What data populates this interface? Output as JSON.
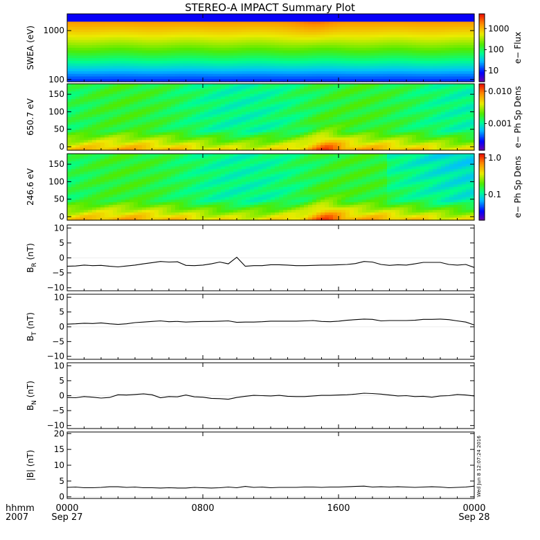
{
  "title": "STEREO-A IMPACT Summary Plot",
  "stamp": "Wed Jun  8 12:07:24 2016",
  "colors": {
    "frame": "#000000",
    "line": "#000000",
    "background": "#ffffff"
  },
  "time_axis": {
    "label_top": "hhmm",
    "label_bottom": "2007",
    "ticks": [
      {
        "t": 0,
        "top": "0000",
        "bottom": "Sep 27"
      },
      {
        "t": 8,
        "top": "0800",
        "bottom": ""
      },
      {
        "t": 16,
        "top": "1600",
        "bottom": ""
      },
      {
        "t": 24,
        "top": "0000",
        "bottom": "Sep 28"
      }
    ],
    "range_hours": [
      0,
      24
    ]
  },
  "chart_data": [
    {
      "type": "heatmap",
      "ylabel": "SWEA (eV)",
      "yscale": "log",
      "ylim": [
        90,
        2200
      ],
      "yticks": [
        {
          "v": 100,
          "label": "100"
        },
        {
          "v": 1000,
          "label": "1000"
        }
      ],
      "colorbar": {
        "label": "e− Flux",
        "scale": "log",
        "range": [
          3,
          5000
        ],
        "ticks": [
          {
            "v": 10,
            "label": "10"
          },
          {
            "v": 100,
            "label": "100"
          },
          {
            "v": 1000,
            "label": "1000"
          }
        ]
      }
    },
    {
      "type": "heatmap",
      "ylabel": "650.7 eV",
      "ylim": [
        -10,
        180
      ],
      "yticks": [
        {
          "v": 0,
          "label": "0"
        },
        {
          "v": 50,
          "label": "50"
        },
        {
          "v": 100,
          "label": "100"
        },
        {
          "v": 150,
          "label": "150"
        }
      ],
      "colorbar": {
        "label": "e− Ph Sp Dens",
        "scale": "log",
        "range": [
          0.00015,
          0.017
        ],
        "ticks": [
          {
            "v": 0.001,
            "label": "0.001"
          },
          {
            "v": 0.01,
            "label": "0.010"
          }
        ]
      }
    },
    {
      "type": "heatmap",
      "ylabel": "246.6 eV",
      "ylim": [
        -10,
        180
      ],
      "yticks": [
        {
          "v": 0,
          "label": "0"
        },
        {
          "v": 50,
          "label": "50"
        },
        {
          "v": 100,
          "label": "100"
        },
        {
          "v": 150,
          "label": "150"
        }
      ],
      "colorbar": {
        "label": "e− Ph Sp Dens",
        "scale": "log",
        "range": [
          0.02,
          1.3
        ],
        "ticks": [
          {
            "v": 0.1,
            "label": "0.1"
          },
          {
            "v": 1.0,
            "label": "1.0"
          }
        ]
      }
    },
    {
      "type": "line",
      "ylabel": "B",
      "ylabel_sub": "R",
      "ylabel_unit": "(nT)",
      "ylim": [
        -11,
        11
      ],
      "yticks": [
        {
          "v": -10,
          "label": "−10"
        },
        {
          "v": -5,
          "label": "−5"
        },
        {
          "v": 0,
          "label": "0"
        },
        {
          "v": 5,
          "label": "5"
        },
        {
          "v": 10,
          "label": "10"
        }
      ],
      "x": [
        0,
        0.5,
        1,
        1.5,
        2,
        2.5,
        3,
        3.5,
        4,
        4.5,
        5,
        5.5,
        6,
        6.5,
        7,
        7.5,
        8,
        8.5,
        9,
        9.5,
        10,
        10.5,
        11,
        11.5,
        12,
        12.5,
        13,
        13.5,
        14,
        14.5,
        15,
        15.5,
        16,
        16.5,
        17,
        17.5,
        18,
        18.5,
        19,
        19.5,
        20,
        20.5,
        21,
        21.5,
        22,
        22.5,
        23,
        23.5,
        24
      ],
      "y": [
        -2.8,
        -2.7,
        -2.4,
        -2.6,
        -2.5,
        -2.8,
        -3.0,
        -2.7,
        -2.4,
        -2.0,
        -1.6,
        -1.2,
        -1.4,
        -1.3,
        -2.5,
        -2.6,
        -2.4,
        -2.0,
        -1.4,
        -2.0,
        0.2,
        -2.8,
        -2.6,
        -2.6,
        -2.3,
        -2.3,
        -2.4,
        -2.6,
        -2.6,
        -2.5,
        -2.4,
        -2.4,
        -2.3,
        -2.2,
        -1.9,
        -1.2,
        -1.4,
        -2.2,
        -2.5,
        -2.3,
        -2.4,
        -2.0,
        -1.5,
        -1.5,
        -1.5,
        -2.2,
        -2.4,
        -2.2,
        -3.2
      ]
    },
    {
      "type": "line",
      "ylabel": "B",
      "ylabel_sub": "T",
      "ylabel_unit": "(nT)",
      "ylim": [
        -11,
        11
      ],
      "yticks": [
        {
          "v": -10,
          "label": "−10"
        },
        {
          "v": -5,
          "label": "−5"
        },
        {
          "v": 0,
          "label": "0"
        },
        {
          "v": 5,
          "label": "5"
        },
        {
          "v": 10,
          "label": "10"
        }
      ],
      "x": [
        0,
        0.5,
        1,
        1.5,
        2,
        2.5,
        3,
        3.5,
        4,
        4.5,
        5,
        5.5,
        6,
        6.5,
        7,
        7.5,
        8,
        8.5,
        9,
        9.5,
        10,
        10.5,
        11,
        11.5,
        12,
        12.5,
        13,
        13.5,
        14,
        14.5,
        15,
        15.5,
        16,
        16.5,
        17,
        17.5,
        18,
        18.5,
        19,
        19.5,
        20,
        20.5,
        21,
        21.5,
        22,
        22.5,
        23,
        23.5,
        24
      ],
      "y": [
        0.9,
        1.0,
        1.2,
        1.1,
        1.3,
        1.0,
        0.8,
        1.0,
        1.4,
        1.6,
        1.8,
        2.0,
        1.7,
        1.8,
        1.6,
        1.7,
        1.8,
        1.8,
        1.9,
        2.0,
        1.5,
        1.6,
        1.6,
        1.7,
        1.9,
        1.9,
        1.9,
        1.9,
        2.0,
        2.1,
        1.8,
        1.7,
        1.9,
        2.2,
        2.4,
        2.6,
        2.5,
        2.0,
        2.1,
        2.1,
        2.1,
        2.2,
        2.5,
        2.5,
        2.6,
        2.4,
        2.0,
        1.6,
        0.6
      ]
    },
    {
      "type": "line",
      "ylabel": "B",
      "ylabel_sub": "N",
      "ylabel_unit": "(nT)",
      "ylim": [
        -11,
        11
      ],
      "yticks": [
        {
          "v": -10,
          "label": "−10"
        },
        {
          "v": -5,
          "label": "−5"
        },
        {
          "v": 0,
          "label": "0"
        },
        {
          "v": 5,
          "label": "5"
        },
        {
          "v": 10,
          "label": "10"
        }
      ],
      "x": [
        0,
        0.5,
        1,
        1.5,
        2,
        2.5,
        3,
        3.5,
        4,
        4.5,
        5,
        5.5,
        6,
        6.5,
        7,
        7.5,
        8,
        8.5,
        9,
        9.5,
        10,
        10.5,
        11,
        11.5,
        12,
        12.5,
        13,
        13.5,
        14,
        14.5,
        15,
        15.5,
        16,
        16.5,
        17,
        17.5,
        18,
        18.5,
        19,
        19.5,
        20,
        20.5,
        21,
        21.5,
        22,
        22.5,
        23,
        23.5,
        24
      ],
      "y": [
        -0.6,
        -0.7,
        -0.3,
        -0.5,
        -0.8,
        -0.6,
        0.3,
        0.2,
        0.4,
        0.6,
        0.3,
        -0.7,
        -0.3,
        -0.4,
        0.2,
        -0.4,
        -0.5,
        -0.9,
        -1.0,
        -1.2,
        -0.6,
        -0.2,
        0.1,
        0.0,
        -0.1,
        0.1,
        -0.2,
        -0.3,
        -0.3,
        -0.1,
        0.1,
        0.1,
        0.2,
        0.3,
        0.5,
        0.8,
        0.7,
        0.5,
        0.2,
        -0.1,
        0.0,
        -0.3,
        -0.2,
        -0.5,
        -0.1,
        0.0,
        0.4,
        0.2,
        -0.1
      ]
    },
    {
      "type": "line",
      "ylabel": "|B|",
      "ylabel_sub": "",
      "ylabel_unit": "(nT)",
      "ylim": [
        -0.5,
        20.5
      ],
      "yticks": [
        {
          "v": 0,
          "label": "0"
        },
        {
          "v": 5,
          "label": "5"
        },
        {
          "v": 10,
          "label": "10"
        },
        {
          "v": 15,
          "label": "15"
        },
        {
          "v": 20,
          "label": "20"
        }
      ],
      "x": [
        0,
        0.5,
        1,
        1.5,
        2,
        2.5,
        3,
        3.5,
        4,
        4.5,
        5,
        5.5,
        6,
        6.5,
        7,
        7.5,
        8,
        8.5,
        9,
        9.5,
        10,
        10.5,
        11,
        11.5,
        12,
        12.5,
        13,
        13.5,
        14,
        14.5,
        15,
        15.5,
        16,
        16.5,
        17,
        17.5,
        18,
        18.5,
        19,
        19.5,
        20,
        20.5,
        21,
        21.5,
        22,
        22.5,
        23,
        23.5,
        24
      ],
      "y": [
        3.0,
        3.1,
        2.9,
        2.9,
        3.0,
        3.2,
        3.2,
        3.0,
        3.1,
        2.9,
        2.9,
        2.8,
        2.9,
        2.8,
        2.8,
        3.0,
        2.9,
        2.8,
        2.9,
        3.1,
        2.9,
        3.3,
        3.0,
        3.1,
        2.9,
        3.0,
        3.0,
        3.0,
        3.1,
        3.1,
        3.0,
        3.1,
        3.1,
        3.2,
        3.3,
        3.4,
        3.1,
        3.2,
        3.1,
        3.2,
        3.1,
        3.0,
        3.1,
        3.2,
        3.1,
        2.9,
        3.0,
        3.1,
        3.4
      ]
    }
  ]
}
